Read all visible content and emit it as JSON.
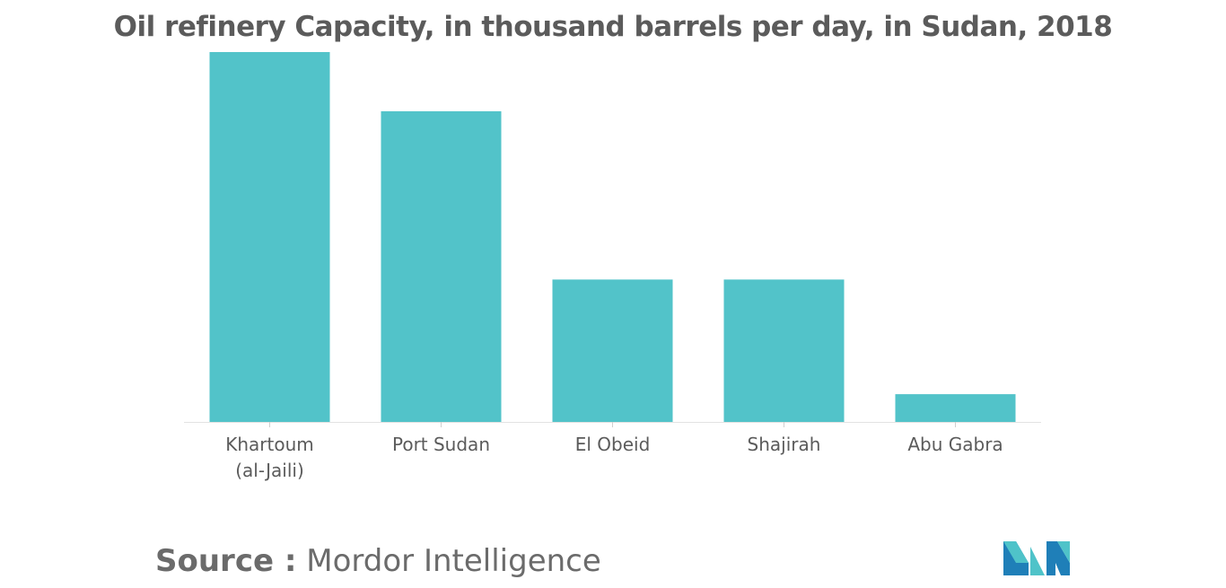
{
  "chart_data": {
    "type": "bar",
    "title": "Oil refinery Capacity, in thousand barrels per day, in Sudan, 2018",
    "categories": [
      "Khartoum (al-Jaili)",
      "Port Sudan",
      "El Obeid",
      "Shajirah",
      "Abu Gabra"
    ],
    "category_lines": [
      [
        "Khartoum",
        "(al-Jaili)"
      ],
      [
        "Port Sudan"
      ],
      [
        "El Obeid"
      ],
      [
        "Shajirah"
      ],
      [
        "Abu Gabra"
      ]
    ],
    "values": [
      100,
      84,
      38.5,
      38.5,
      7.5
    ],
    "xlabel": "",
    "ylabel": "",
    "ylim": [
      0,
      100
    ],
    "grid": false,
    "legend": "none",
    "bar_color": "#52c3c9"
  },
  "source": {
    "label": "Source :",
    "text": "Mordor Intelligence"
  },
  "logo": {
    "icon": "mordor-intelligence-logo",
    "colors": [
      "#1f7fb8",
      "#4fc3c9"
    ]
  }
}
